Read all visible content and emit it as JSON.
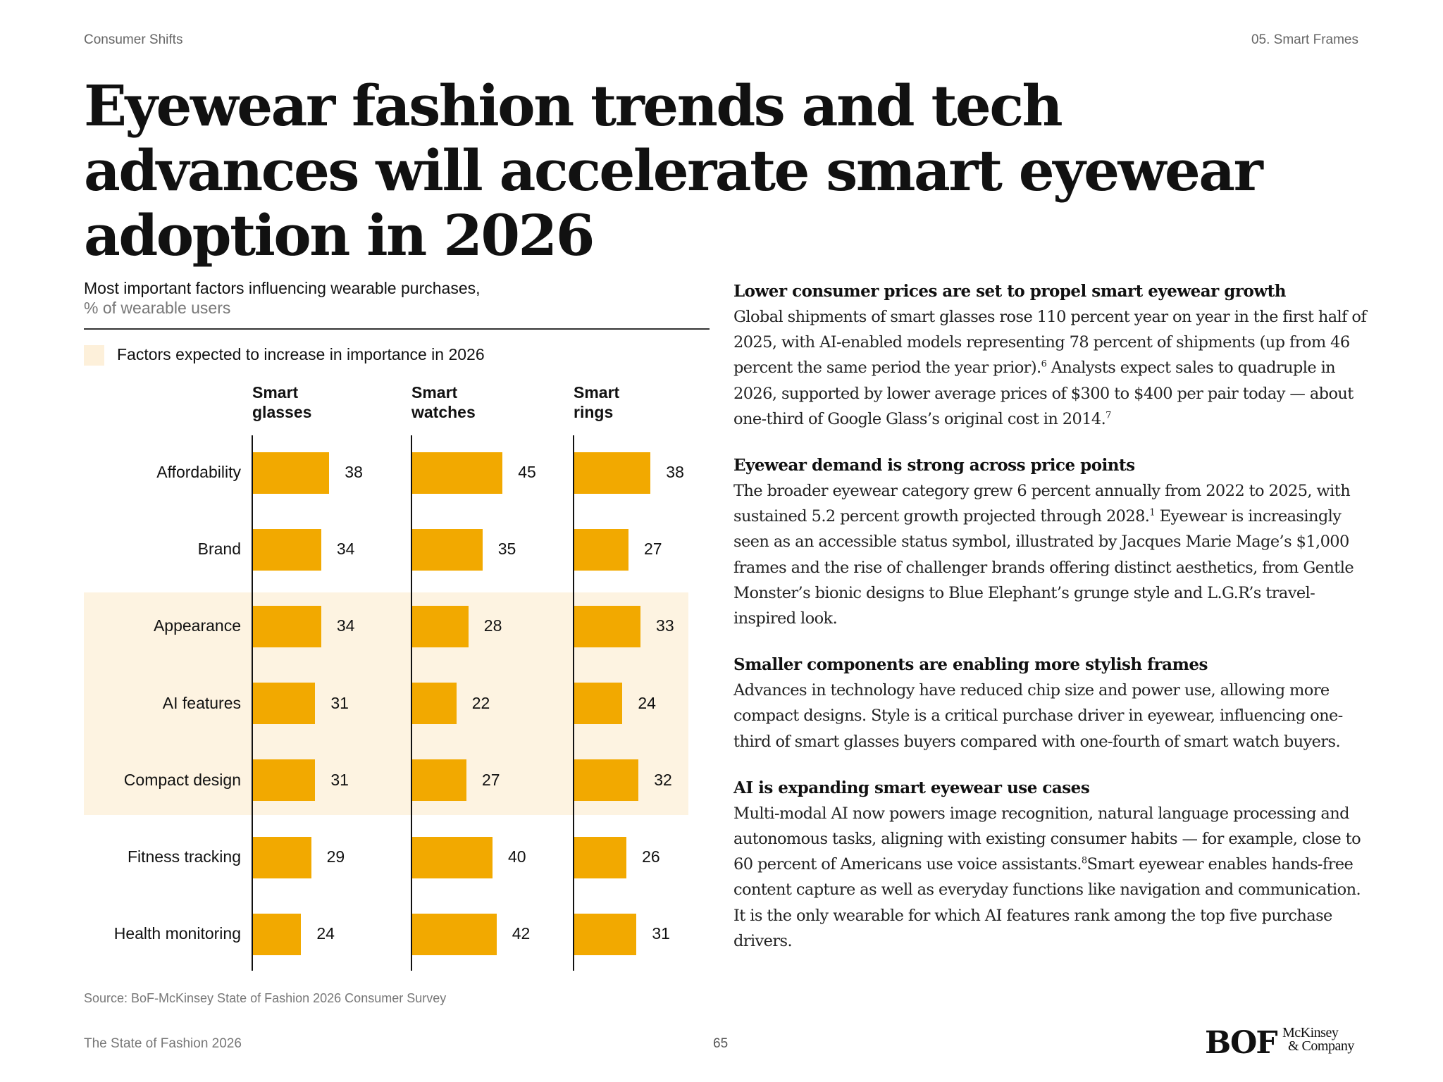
{
  "header": {
    "section": "Consumer Shifts",
    "chapter": "05. Smart Frames"
  },
  "title": "Eyewear fashion trends and tech advances will accelerate smart eyewear adoption in 2026",
  "chart_data": {
    "type": "bar",
    "orientation": "horizontal",
    "title": "Most important factors influencing wearable purchases,",
    "unit": "% of wearable users",
    "legend": {
      "label": "Factors expected to increase in importance in 2026",
      "color": "#FDF3E1"
    },
    "bar_color": "#F2A900",
    "categories": [
      "Affordability",
      "Brand",
      "Appearance",
      "AI features",
      "Compact design",
      "Fitness tracking",
      "Health monitoring"
    ],
    "highlighted_categories": [
      "Appearance",
      "AI features",
      "Compact design"
    ],
    "series": [
      {
        "name": "Smart glasses",
        "header": [
          "Smart",
          "glasses"
        ],
        "values": [
          38,
          34,
          34,
          31,
          31,
          29,
          24
        ]
      },
      {
        "name": "Smart watches",
        "header": [
          "Smart",
          "watches"
        ],
        "values": [
          45,
          35,
          28,
          22,
          27,
          40,
          42
        ]
      },
      {
        "name": "Smart rings",
        "header": [
          "Smart",
          "rings"
        ],
        "values": [
          38,
          27,
          33,
          24,
          32,
          26,
          31
        ]
      }
    ],
    "source": "Source: BoF-McKinsey State of Fashion 2026 Consumer Survey"
  },
  "sections": [
    {
      "heading": "Lower consumer prices are set to propel smart eyewear growth",
      "body": [
        {
          "t": "Global shipments of smart glasses rose 110 percent year on year in the first half of 2025, with AI-enabled models representing 78 percent of shipments (up from 46 percent the same period the year prior)."
        },
        {
          "sup": "6"
        },
        {
          "t": " Analysts expect sales to quadruple in 2026, supported by lower average prices of $300 to $400 per pair today — about one-third of Google Glass’s original cost in 2014."
        },
        {
          "sup": "7"
        }
      ]
    },
    {
      "heading": "Eyewear demand is strong across price points",
      "body": [
        {
          "t": "The broader eyewear category grew 6 percent annually from 2022 to 2025, with sustained 5.2 percent growth projected through 2028."
        },
        {
          "sup": "1"
        },
        {
          "t": " Eyewear is increasingly seen as an accessible status symbol, illustrated by Jacques Marie Mage’s $1,000 frames and the rise of challenger brands offering distinct aesthetics, from Gentle Monster’s bionic designs to Blue Elephant’s grunge style and L.G.R’s travel-inspired look."
        }
      ]
    },
    {
      "heading": "Smaller components are enabling more stylish frames",
      "body": [
        {
          "t": "Advances in technology have reduced chip size and power use, allowing more compact designs. Style is a critical purchase driver in eyewear, influencing one-third of smart glasses buyers compared with one-fourth of smart watch buyers."
        }
      ]
    },
    {
      "heading": "AI is expanding smart eyewear use cases",
      "body": [
        {
          "t": "Multi-modal AI now powers image recognition, natural language processing and autonomous tasks, aligning with existing consumer habits — for example, close to 60 percent of Americans use voice assistants."
        },
        {
          "sup": "8"
        },
        {
          "t": "Smart eyewear enables hands-free content capture as well as everyday functions like navigation and communication. It is the only wearable for which AI features rank among the top five purchase drivers."
        }
      ]
    }
  ],
  "footer": {
    "publication": "The State of Fashion 2026",
    "page": "65"
  },
  "logos": {
    "bof": "BOF",
    "mckinsey": [
      "McKinsey",
      "& Company"
    ]
  }
}
